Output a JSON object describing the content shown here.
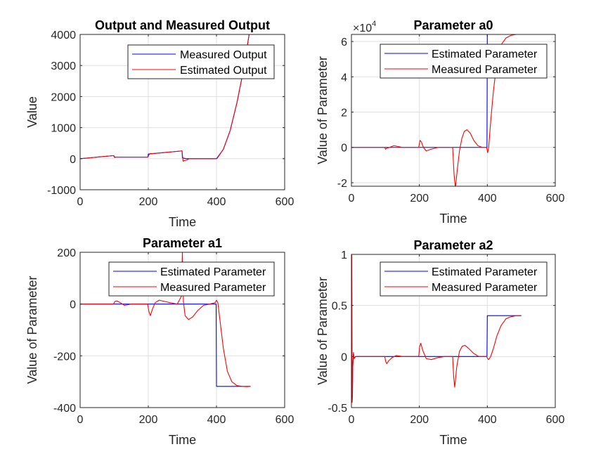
{
  "colors": {
    "blue": "#0000ff",
    "red": "#ff0000",
    "grid": "#dfdfdf",
    "axis": "#262626"
  },
  "chart_data": [
    {
      "type": "line",
      "title": "Output and Measured Output",
      "xlabel": "Time",
      "ylabel": "Value",
      "xlim": [
        0,
        600
      ],
      "ylim": [
        -1000,
        4000
      ],
      "xticks": [
        0,
        200,
        400,
        600
      ],
      "yticks": [
        -1000,
        0,
        1000,
        2000,
        3000,
        4000
      ],
      "tick_labels_x": [
        "0",
        "200",
        "400",
        "600"
      ],
      "tick_labels_y": [
        "-1000",
        "0",
        "1000",
        "2000",
        "3000",
        "4000"
      ],
      "grid": true,
      "legend_position": "top-right",
      "series": [
        {
          "name": "Measured Output",
          "color": "#0000ff",
          "x": [
            0,
            50,
            99,
            100,
            150,
            199,
            200,
            210,
            250,
            299,
            300,
            310,
            330,
            350,
            399,
            400,
            420,
            440,
            460,
            480,
            500
          ],
          "y": [
            0,
            50,
            100,
            50,
            50,
            50,
            150,
            160,
            200,
            250,
            30,
            0,
            0,
            0,
            0,
            0,
            300,
            900,
            1800,
            2900,
            4300
          ]
        },
        {
          "name": "Estimated Output",
          "color": "#ff0000",
          "x": [
            0,
            50,
            99,
            101,
            105,
            150,
            199,
            202,
            206,
            210,
            250,
            299,
            302,
            306,
            312,
            320,
            340,
            399,
            402,
            420,
            440,
            460,
            480,
            500
          ],
          "y": [
            0,
            50,
            100,
            40,
            50,
            50,
            50,
            130,
            170,
            160,
            200,
            250,
            -80,
            -60,
            -50,
            0,
            0,
            0,
            10,
            300,
            900,
            1800,
            2900,
            4300
          ]
        }
      ]
    },
    {
      "type": "line",
      "title": "Parameter a0",
      "xlabel": "Time",
      "ylabel": "Value of Parameter",
      "y_exponent": {
        "base": "×10",
        "power": "4"
      },
      "xlim": [
        0,
        600
      ],
      "ylim": [
        -2.2,
        6.4
      ],
      "xticks": [
        0,
        200,
        400,
        600
      ],
      "yticks": [
        -2,
        0,
        2,
        4,
        6
      ],
      "tick_labels_x": [
        "0",
        "200",
        "400",
        "600"
      ],
      "tick_labels_y": [
        "-2",
        "0",
        "2",
        "4",
        "6"
      ],
      "grid": true,
      "legend_position": "top-right",
      "series": [
        {
          "name": "Estimated Parameter",
          "color": "#0000ff",
          "x": [
            0,
            100,
            200,
            300,
            399,
            400,
            500
          ],
          "y": [
            0,
            0,
            0,
            0,
            0,
            6.45,
            6.45
          ]
        },
        {
          "name": "Measured Parameter",
          "color": "#ff0000",
          "x": [
            0,
            98,
            100,
            104,
            112,
            125,
            150,
            175,
            198,
            202,
            206,
            212,
            220,
            235,
            255,
            275,
            298,
            302,
            306,
            312,
            318,
            325,
            332,
            340,
            350,
            360,
            372,
            385,
            398,
            401,
            404,
            410,
            418,
            428,
            440,
            455,
            470,
            485,
            500
          ],
          "y": [
            0,
            0,
            -0.1,
            -0.05,
            0,
            0.1,
            0,
            0,
            0,
            0.4,
            0.3,
            0,
            -0.2,
            -0.1,
            0,
            0,
            0,
            -1.5,
            -2.3,
            -1.2,
            -0.2,
            0.5,
            0.9,
            1.0,
            0.8,
            0.4,
            0.1,
            0,
            0,
            -0.3,
            0,
            1.5,
            3.2,
            4.8,
            5.8,
            6.2,
            6.35,
            6.4,
            6.45
          ]
        }
      ]
    },
    {
      "type": "line",
      "title": "Parameter a1",
      "xlabel": "Time",
      "ylabel": "Value of Parameter",
      "xlim": [
        0,
        600
      ],
      "ylim": [
        -400,
        200
      ],
      "xticks": [
        0,
        200,
        400,
        600
      ],
      "yticks": [
        -400,
        -200,
        0,
        200
      ],
      "tick_labels_x": [
        "0",
        "200",
        "400",
        "600"
      ],
      "tick_labels_y": [
        "-400",
        "-200",
        "0",
        "200"
      ],
      "grid": true,
      "legend_position": "top-right",
      "series": [
        {
          "name": "Estimated Parameter",
          "color": "#0000ff",
          "x": [
            0,
            100,
            200,
            300,
            399,
            400,
            500
          ],
          "y": [
            0,
            0,
            0,
            0,
            0,
            -318,
            -318
          ]
        },
        {
          "name": "Measured Parameter",
          "color": "#ff0000",
          "x": [
            0,
            98,
            102,
            108,
            118,
            130,
            150,
            170,
            198,
            202,
            206,
            212,
            220,
            232,
            248,
            265,
            285,
            297,
            300,
            303,
            308,
            318,
            330,
            345,
            362,
            380,
            396,
            400,
            404,
            410,
            420,
            432,
            445,
            460,
            475,
            490,
            500
          ],
          "y": [
            0,
            0,
            10,
            12,
            5,
            -5,
            0,
            0,
            0,
            -30,
            -45,
            -20,
            5,
            15,
            10,
            5,
            0,
            30,
            200,
            10,
            -45,
            -60,
            -50,
            -25,
            -5,
            0,
            5,
            15,
            5,
            -60,
            -170,
            -260,
            -300,
            -315,
            -318,
            -319,
            -318
          ]
        }
      ]
    },
    {
      "type": "line",
      "title": "Parameter a2",
      "xlabel": "Time",
      "ylabel": "Value of Parameter",
      "xlim": [
        0,
        600
      ],
      "ylim": [
        -0.5,
        1
      ],
      "xticks": [
        0,
        200,
        400,
        600
      ],
      "yticks": [
        -0.5,
        0,
        0.5,
        1
      ],
      "tick_labels_x": [
        "0",
        "200",
        "400",
        "600"
      ],
      "tick_labels_y": [
        "-0.5",
        "0",
        "0.5",
        "1"
      ],
      "grid": true,
      "legend_position": "top-right",
      "series": [
        {
          "name": "Estimated Parameter",
          "color": "#0000ff",
          "x": [
            0,
            1,
            2,
            3,
            4,
            6,
            8,
            12,
            20,
            100,
            200,
            300,
            399,
            400,
            500
          ],
          "y": [
            0,
            0.8,
            -0.4,
            -0.35,
            -0.1,
            0.03,
            -0.02,
            0,
            0,
            0,
            0,
            0,
            0,
            0.4,
            0.4
          ]
        },
        {
          "name": "Measured Parameter",
          "color": "#ff0000",
          "x": [
            0,
            1,
            2,
            3,
            4,
            6,
            8,
            12,
            20,
            98,
            101,
            104,
            110,
            120,
            132,
            150,
            175,
            198,
            201,
            204,
            210,
            220,
            235,
            255,
            275,
            298,
            301,
            304,
            310,
            318,
            326,
            334,
            345,
            360,
            375,
            390,
            398,
            401,
            404,
            410,
            418,
            428,
            440,
            455,
            470,
            485,
            500
          ],
          "y": [
            0,
            1.0,
            -0.45,
            -0.4,
            -0.1,
            0.04,
            -0.02,
            0,
            0,
            0,
            -0.05,
            -0.07,
            -0.04,
            -0.01,
            0.01,
            0,
            0,
            0,
            0.1,
            0.13,
            0.06,
            -0.02,
            -0.03,
            -0.01,
            0,
            0,
            -0.2,
            -0.3,
            -0.1,
            0.05,
            0.1,
            0.11,
            0.08,
            0.03,
            0,
            0,
            0,
            -0.02,
            -0.03,
            0,
            0.08,
            0.2,
            0.3,
            0.37,
            0.39,
            0.4,
            0.4
          ]
        }
      ]
    }
  ]
}
